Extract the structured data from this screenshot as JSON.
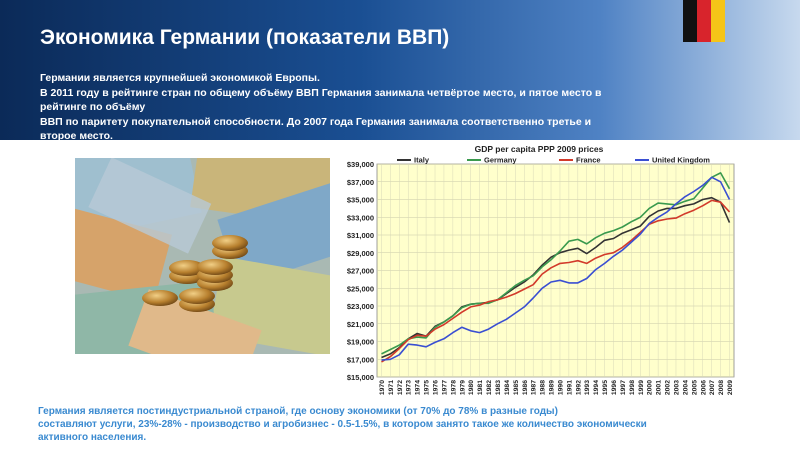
{
  "header": {
    "title": "Экономика Германии (показатели ВВП)",
    "intro_lines": [
      "Германии является крупнейшей экономикой Европы.",
      "В 2011 году в рейтинге стран по общему объёму ВВП Германия занимала четвёртое место, и пятое место в",
      "рейтинге по объёму",
      "ВВП по паритету покупательной способности. До 2007 года Германия занимала соответственно третье и",
      "второе место."
    ]
  },
  "footer": {
    "lines": [
      "Германия является постиндустриальной страной, где основу экономики (от 70% до 78% в разные годы)",
      "составляют услуги, 23%-28% - производство и агробизнес - 0.5-1.5%, в котором занято такое же количество экономически",
      "активного населения."
    ]
  },
  "chart_data": {
    "type": "line",
    "title": "GDP per capita PPP 2009 prices",
    "xlabel": "",
    "ylabel": "",
    "x": [
      1970,
      1971,
      1972,
      1973,
      1974,
      1975,
      1976,
      1977,
      1978,
      1979,
      1980,
      1981,
      1982,
      1983,
      1984,
      1985,
      1986,
      1987,
      1988,
      1989,
      1990,
      1991,
      1992,
      1993,
      1994,
      1995,
      1996,
      1997,
      1998,
      1999,
      2000,
      2001,
      2002,
      2003,
      2004,
      2005,
      2006,
      2007,
      2008,
      2009
    ],
    "ylim": [
      15000,
      39000
    ],
    "y_ticks": [
      15000,
      17000,
      19000,
      21000,
      23000,
      25000,
      27000,
      29000,
      31000,
      33000,
      35000,
      37000,
      39000
    ],
    "y_tick_labels": [
      "$15,000",
      "$17,000",
      "$19,000",
      "$21,000",
      "$23,000",
      "$25,000",
      "$27,000",
      "$29,000",
      "$31,000",
      "$33,000",
      "$35,000",
      "$37,000",
      "$39,000"
    ],
    "grid": true,
    "legend_position": "top",
    "background": "#ffffcc",
    "series": [
      {
        "name": "Italy",
        "color": "#333333",
        "values": [
          17200,
          17600,
          18300,
          19300,
          19900,
          19600,
          20700,
          21200,
          21900,
          22900,
          23200,
          23300,
          23400,
          23700,
          24400,
          25100,
          25700,
          26500,
          27600,
          28500,
          29000,
          29300,
          29500,
          28900,
          29600,
          30400,
          30600,
          31200,
          31600,
          32000,
          33100,
          33700,
          34000,
          34000,
          34300,
          34500,
          35000,
          35200,
          34700,
          32400
        ]
      },
      {
        "name": "Germany",
        "color": "#3a9a4e",
        "values": [
          17600,
          18100,
          18600,
          19300,
          19500,
          19400,
          20600,
          21200,
          21900,
          22800,
          23200,
          23300,
          23300,
          23700,
          24500,
          25300,
          25900,
          26400,
          27400,
          28200,
          29200,
          30300,
          30500,
          30000,
          30700,
          31200,
          31500,
          31900,
          32500,
          33000,
          34000,
          34600,
          34500,
          34400,
          34800,
          35100,
          36300,
          37500,
          38000,
          36200
        ]
      },
      {
        "name": "France",
        "color": "#d23a2a",
        "values": [
          16700,
          17300,
          18200,
          19200,
          19700,
          19600,
          20400,
          20900,
          21600,
          22300,
          22900,
          23100,
          23500,
          23700,
          24000,
          24400,
          24900,
          25400,
          26600,
          27300,
          27800,
          27900,
          28100,
          27800,
          28400,
          28800,
          29000,
          29600,
          30400,
          31300,
          32200,
          32600,
          32800,
          32900,
          33400,
          33800,
          34300,
          34900,
          34700,
          33600
        ]
      },
      {
        "name": "United Kingdom",
        "color": "#3a4fd2",
        "values": [
          16900,
          17000,
          17500,
          18700,
          18600,
          18400,
          18900,
          19300,
          20000,
          20600,
          20200,
          20000,
          20400,
          21000,
          21500,
          22200,
          22900,
          23900,
          25000,
          25700,
          25900,
          25600,
          25600,
          26100,
          27100,
          27800,
          28600,
          29300,
          30200,
          31100,
          32300,
          33000,
          33600,
          34500,
          35300,
          35900,
          36600,
          37500,
          37000,
          35000
        ]
      }
    ]
  }
}
